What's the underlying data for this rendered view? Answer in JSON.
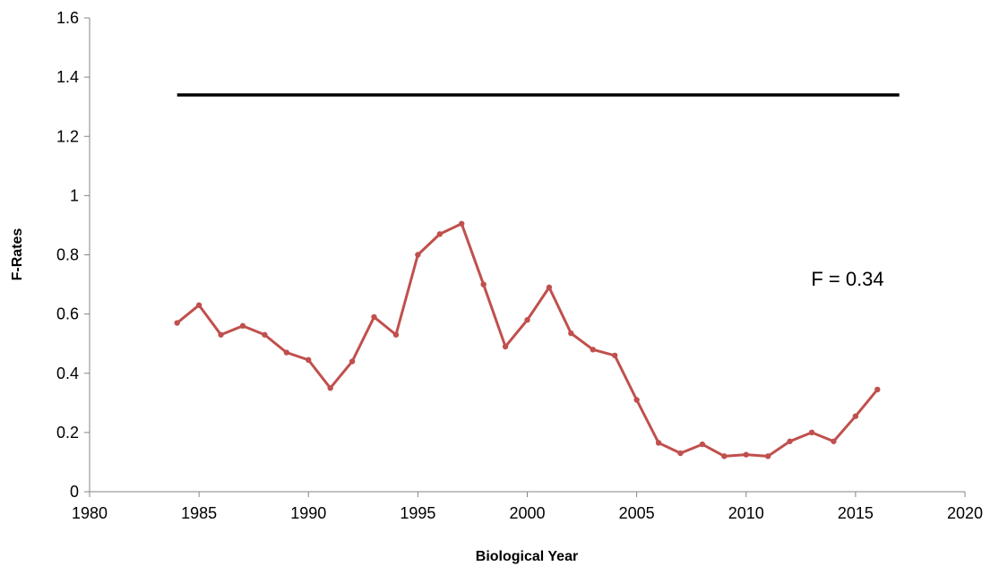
{
  "chart_data": {
    "type": "line",
    "x_label": "Biological Year",
    "y_label": "F-Rates",
    "annotation": "F = 0.34",
    "xlim": [
      1980,
      2020
    ],
    "xticks": [
      1980,
      1985,
      1990,
      1995,
      2000,
      2005,
      2010,
      2015,
      2020
    ],
    "ylim": [
      0,
      1.6
    ],
    "yticks": [
      0,
      0.2,
      0.4,
      0.6,
      0.8,
      1,
      1.2,
      1.4,
      1.6
    ],
    "grid": false,
    "series": [
      {
        "color": "#c0504d",
        "markers": true,
        "x": [
          1984,
          1985,
          1986,
          1987,
          1988,
          1989,
          1990,
          1991,
          1992,
          1993,
          1994,
          1995,
          1996,
          1997,
          1998,
          1999,
          2000,
          2001,
          2002,
          2003,
          2004,
          2005,
          2006,
          2007,
          2008,
          2009,
          2010,
          2011,
          2012,
          2013,
          2014,
          2015,
          2016
        ],
        "values": [
          0.57,
          0.63,
          0.53,
          0.56,
          0.53,
          0.47,
          0.445,
          0.35,
          0.44,
          0.59,
          0.53,
          0.8,
          0.87,
          0.905,
          0.7,
          0.49,
          0.58,
          0.69,
          0.535,
          0.48,
          0.46,
          0.31,
          0.165,
          0.13,
          0.16,
          0.12,
          0.125,
          0.12,
          0.17,
          0.2,
          0.17,
          0.255,
          0.345
        ]
      },
      {
        "color": "#000000",
        "markers": false,
        "x": [
          1984,
          2017
        ],
        "values": [
          1.34,
          1.34
        ]
      }
    ]
  }
}
